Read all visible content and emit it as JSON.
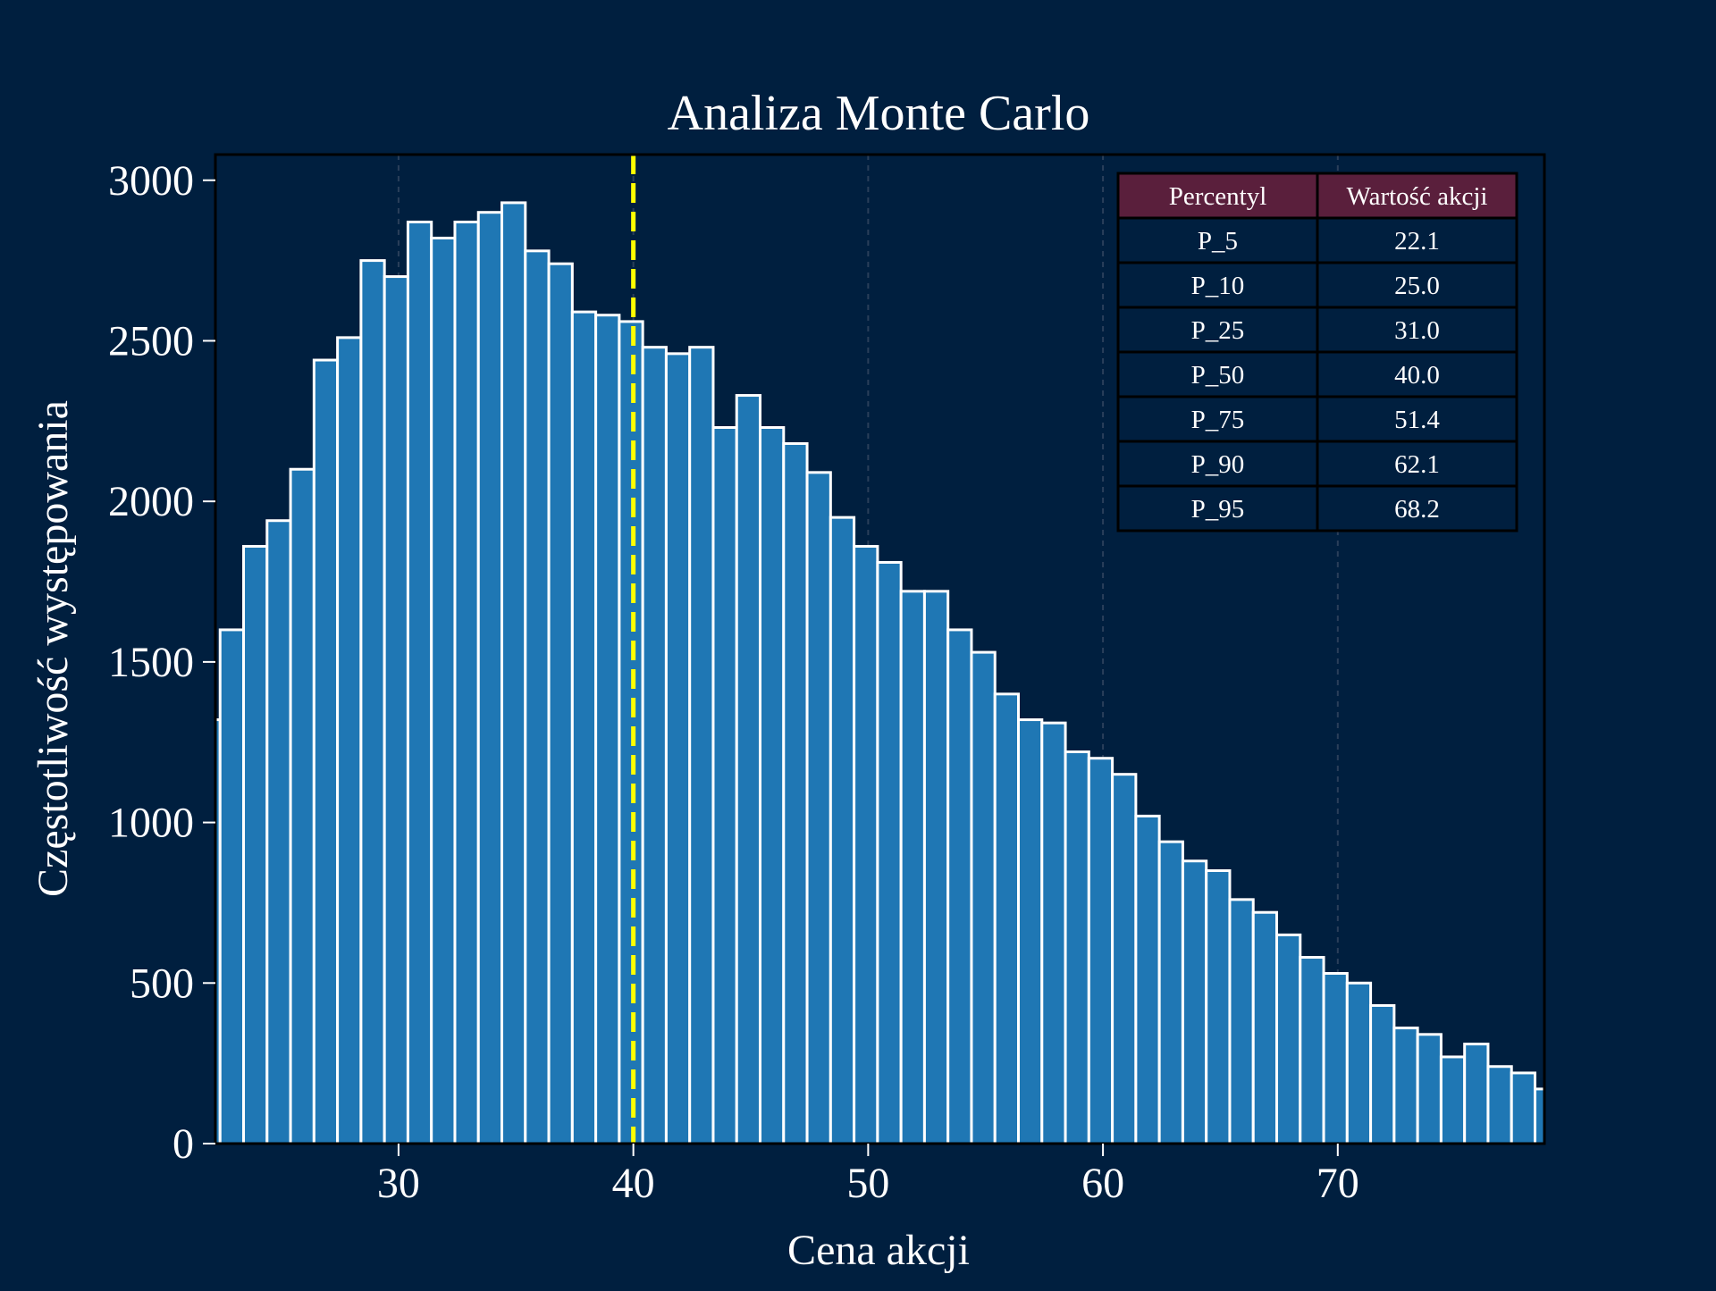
{
  "colors": {
    "background": "#001f3f",
    "bar_fill": "#1f77b4",
    "bar_edge": "#ffffff",
    "median_line": "#ffff00",
    "grid": "#2a3f5a",
    "table_header_bg": "#5a1f3c",
    "table_cell_bg": "#001f3f",
    "table_border": "#000000"
  },
  "chart_data": {
    "type": "bar",
    "title": "Analiza Monte Carlo",
    "xlabel": "Cena akcji",
    "ylabel": "Częstotliwość występowania",
    "xlim": [
      22.2,
      78.8
    ],
    "ylim": [
      0,
      3080
    ],
    "xticks": [
      30,
      40,
      50,
      60,
      70
    ],
    "yticks": [
      0,
      500,
      1000,
      1500,
      2000,
      2500,
      3000
    ],
    "grid": "vertical dashed at x ticks",
    "bin_start": 21.4,
    "bin_width": 1.0,
    "bin_counts": [
      1320,
      1600,
      1860,
      1940,
      2100,
      2440,
      2510,
      2750,
      2700,
      2870,
      2820,
      2870,
      2900,
      2930,
      2780,
      2740,
      2590,
      2580,
      2560,
      2480,
      2460,
      2480,
      2230,
      2330,
      2230,
      2180,
      2090,
      1950,
      1860,
      1810,
      1720,
      1720,
      1600,
      1530,
      1400,
      1320,
      1310,
      1220,
      1200,
      1150,
      1020,
      940,
      880,
      850,
      760,
      720,
      650,
      580,
      530,
      500,
      430,
      360,
      340,
      270,
      310,
      240,
      220,
      170
    ],
    "median_line_x": 40.0,
    "percentile_table": {
      "headers": [
        "Percentyl",
        "Wartość akcji"
      ],
      "rows": [
        [
          "P_5",
          "22.1"
        ],
        [
          "P_10",
          "25.0"
        ],
        [
          "P_25",
          "31.0"
        ],
        [
          "P_50",
          "40.0"
        ],
        [
          "P_75",
          "51.4"
        ],
        [
          "P_90",
          "62.1"
        ],
        [
          "P_95",
          "68.2"
        ]
      ]
    }
  }
}
